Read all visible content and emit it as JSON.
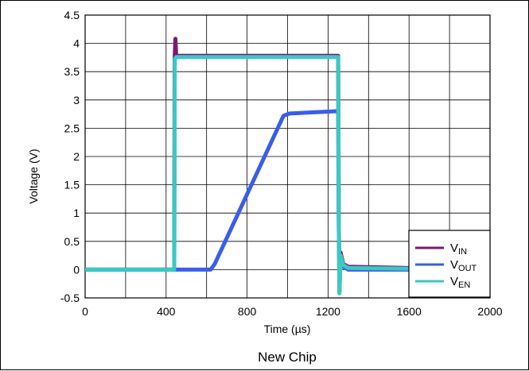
{
  "caption": "New Chip",
  "chart_data": {
    "type": "line",
    "xlabel": "Time (µs)",
    "ylabel": "Voltage (V)",
    "xlim": [
      0,
      2000
    ],
    "ylim": [
      -0.5,
      4.5
    ],
    "xticks": [
      "0",
      "400",
      "800",
      "1200",
      "1600",
      "2000"
    ],
    "yticks": [
      "-0.5",
      "0",
      "0.5",
      "1",
      "1.5",
      "2",
      "2.5",
      "3",
      "3.5",
      "4",
      "4.5"
    ],
    "grid": true,
    "legend_position": "bottom-right",
    "series": [
      {
        "name": "V_IN",
        "label_main": "V",
        "label_sub": "IN",
        "color": "#7b1a6e",
        "x": [
          0,
          440,
          442,
          446,
          450,
          460,
          500,
          1240,
          1250,
          1253,
          1256,
          1262,
          1275,
          1300,
          2000
        ],
        "y": [
          0.0,
          0.0,
          3.7,
          4.08,
          3.78,
          3.78,
          3.78,
          3.78,
          3.78,
          0.9,
          -0.4,
          0.3,
          0.1,
          0.05,
          0.0
        ]
      },
      {
        "name": "V_OUT",
        "label_main": "V",
        "label_sub": "OUT",
        "color": "#3a5eea",
        "x": [
          0,
          440,
          620,
          640,
          980,
          1010,
          1240,
          1250,
          1253,
          1256,
          1262,
          1275,
          1300,
          2000
        ],
        "y": [
          0.0,
          0.0,
          0.0,
          0.1,
          2.72,
          2.76,
          2.8,
          2.8,
          0.7,
          0.0,
          0.1,
          0.05,
          0.0,
          0.0
        ]
      },
      {
        "name": "V_EN",
        "label_main": "V",
        "label_sub": "EN",
        "color": "#3cc8c4",
        "x": [
          0,
          440,
          443,
          450,
          1240,
          1250,
          1253,
          1256,
          1262,
          1275,
          1300,
          2000
        ],
        "y": [
          0.0,
          0.0,
          3.72,
          3.76,
          3.76,
          3.76,
          0.8,
          -0.42,
          0.25,
          0.08,
          0.03,
          0.0
        ]
      }
    ]
  }
}
